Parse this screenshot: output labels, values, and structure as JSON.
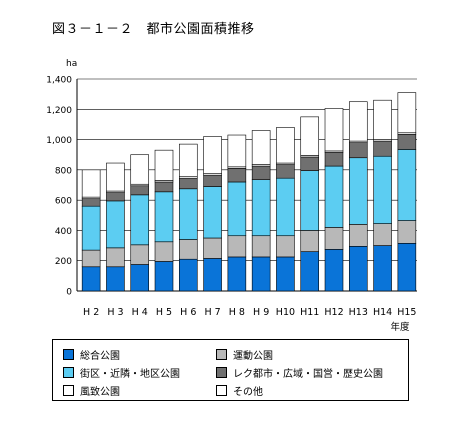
{
  "figure_title": "図３－１－２　都市公園面積推移",
  "legend": [
    {
      "label": "総合公園",
      "color": "#0a74d8"
    },
    {
      "label": "運動公園",
      "color": "#b8b8b8"
    },
    {
      "label": "街区・近隣・地区公園",
      "color": "#5ccdf2"
    },
    {
      "label": "レク都市・広域・国営・歴史公園",
      "color": "#707070"
    },
    {
      "label": "風致公園",
      "color": "#ffffff"
    },
    {
      "label": "その他",
      "color": "#ffffff"
    }
  ],
  "chart_data": {
    "type": "bar",
    "stacked": true,
    "ylabel": "ha",
    "xlabel_suffix": "年度",
    "ylim": [
      0,
      1400
    ],
    "yticks": [
      "0",
      "200",
      "400",
      "600",
      "800",
      "1,000",
      "1,200",
      "1,400"
    ],
    "categories": [
      "H 2",
      "H 3",
      "H 4",
      "H 5",
      "H 6",
      "H 7",
      "H 8",
      "H 9",
      "H10",
      "H11",
      "H12",
      "H13",
      "H14",
      "H15"
    ],
    "series": [
      {
        "name": "総合公園",
        "values": [
          160,
          160,
          175,
          195,
          210,
          215,
          225,
          225,
          225,
          260,
          275,
          295,
          300,
          315
        ]
      },
      {
        "name": "運動公園",
        "values": [
          110,
          125,
          130,
          130,
          130,
          135,
          140,
          140,
          140,
          140,
          145,
          145,
          145,
          150
        ]
      },
      {
        "name": "街区・近隣・地区公園",
        "values": [
          290,
          310,
          330,
          330,
          335,
          340,
          355,
          370,
          380,
          395,
          405,
          440,
          445,
          470
        ]
      },
      {
        "name": "レク都市・広域・国営・歴史公園",
        "values": [
          50,
          55,
          60,
          65,
          70,
          75,
          90,
          90,
          90,
          90,
          90,
          100,
          100,
          100
        ]
      },
      {
        "name": "風致公園",
        "values": [
          10,
          10,
          10,
          10,
          10,
          10,
          10,
          10,
          10,
          10,
          10,
          10,
          10,
          10
        ]
      },
      {
        "name": "その他",
        "values": [
          180,
          185,
          195,
          200,
          215,
          245,
          210,
          225,
          235,
          255,
          280,
          260,
          260,
          265
        ]
      }
    ]
  }
}
